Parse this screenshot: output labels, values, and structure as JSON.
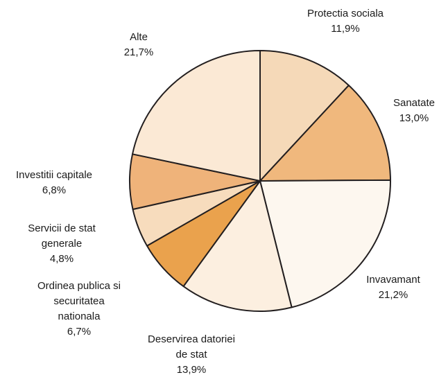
{
  "chart_data": {
    "type": "pie",
    "title": "",
    "start": "12 o'clock",
    "direction": "clockwise",
    "slices": [
      {
        "label": [
          "Protectia sociala"
        ],
        "value_text": "11,9%",
        "value": 11.9,
        "color": "#f5d9b8"
      },
      {
        "label": [
          "Sanatate"
        ],
        "value_text": "13,0%",
        "value": 13.0,
        "color": "#f0b87d"
      },
      {
        "label": [
          "Invavamant"
        ],
        "value_text": "21,2%",
        "value": 21.2,
        "color": "#fdf7ef"
      },
      {
        "label": [
          "Deservirea datoriei",
          "de stat"
        ],
        "value_text": "13,9%",
        "value": 13.9,
        "color": "#fcefe0"
      },
      {
        "label": [
          "Ordinea publica si",
          "securitatea",
          "nationala"
        ],
        "value_text": "6,7%",
        "value": 6.7,
        "color": "#eaa24d"
      },
      {
        "label": [
          "Servicii de stat",
          "generale"
        ],
        "value_text": "4,8%",
        "value": 4.8,
        "color": "#f7dcbd"
      },
      {
        "label": [
          "Investitii capitale"
        ],
        "value_text": "6,8%",
        "value": 6.8,
        "color": "#efb37a"
      },
      {
        "label": [
          "Alte"
        ],
        "value_text": "21,7%",
        "value": 21.7,
        "color": "#fbe9d5"
      }
    ]
  }
}
